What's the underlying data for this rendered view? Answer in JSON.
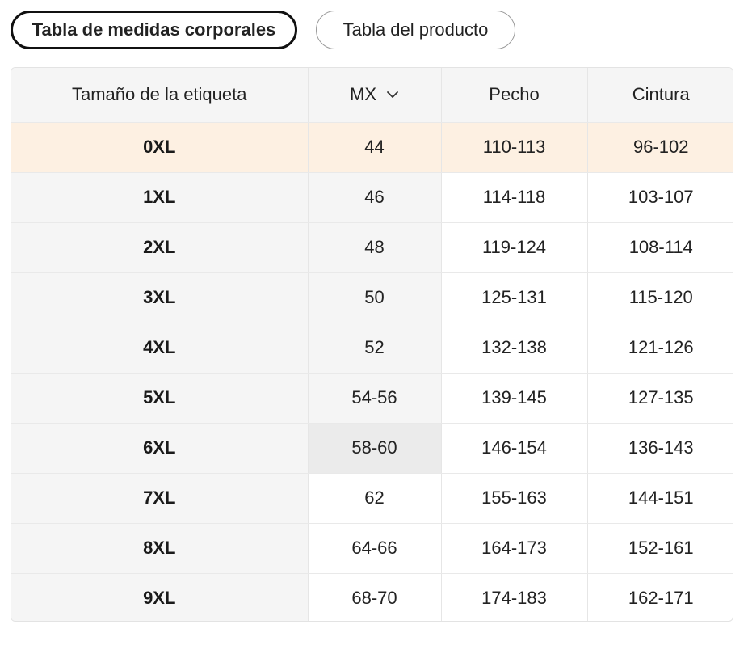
{
  "tabs": [
    {
      "label": "Tabla de medidas corporales",
      "active": true
    },
    {
      "label": "Tabla del producto",
      "active": false
    }
  ],
  "table": {
    "headers": {
      "size": "Tamaño de la etiqueta",
      "mx": "MX",
      "chest": "Pecho",
      "waist": "Cintura"
    },
    "rows": [
      {
        "size": "0XL",
        "mx": "44",
        "chest": "110-113",
        "waist": "96-102"
      },
      {
        "size": "1XL",
        "mx": "46",
        "chest": "114-118",
        "waist": "103-107"
      },
      {
        "size": "2XL",
        "mx": "48",
        "chest": "119-124",
        "waist": "108-114"
      },
      {
        "size": "3XL",
        "mx": "50",
        "chest": "125-131",
        "waist": "115-120"
      },
      {
        "size": "4XL",
        "mx": "52",
        "chest": "132-138",
        "waist": "121-126"
      },
      {
        "size": "5XL",
        "mx": "54-56",
        "chest": "139-145",
        "waist": "127-135"
      },
      {
        "size": "6XL",
        "mx": "58-60",
        "chest": "146-154",
        "waist": "136-143"
      },
      {
        "size": "7XL",
        "mx": "62",
        "chest": "155-163",
        "waist": "144-151"
      },
      {
        "size": "8XL",
        "mx": "64-66",
        "chest": "164-173",
        "waist": "152-161"
      },
      {
        "size": "9XL",
        "mx": "68-70",
        "chest": "174-183",
        "waist": "162-171"
      }
    ]
  },
  "icons": {
    "mx_dropdown": "chevron-down-icon"
  },
  "colors": {
    "highlight_row": "#fdf0e2",
    "header_bg": "#f5f5f5",
    "hover_cell": "#ebebeb",
    "active_tab_border": "#111111"
  }
}
